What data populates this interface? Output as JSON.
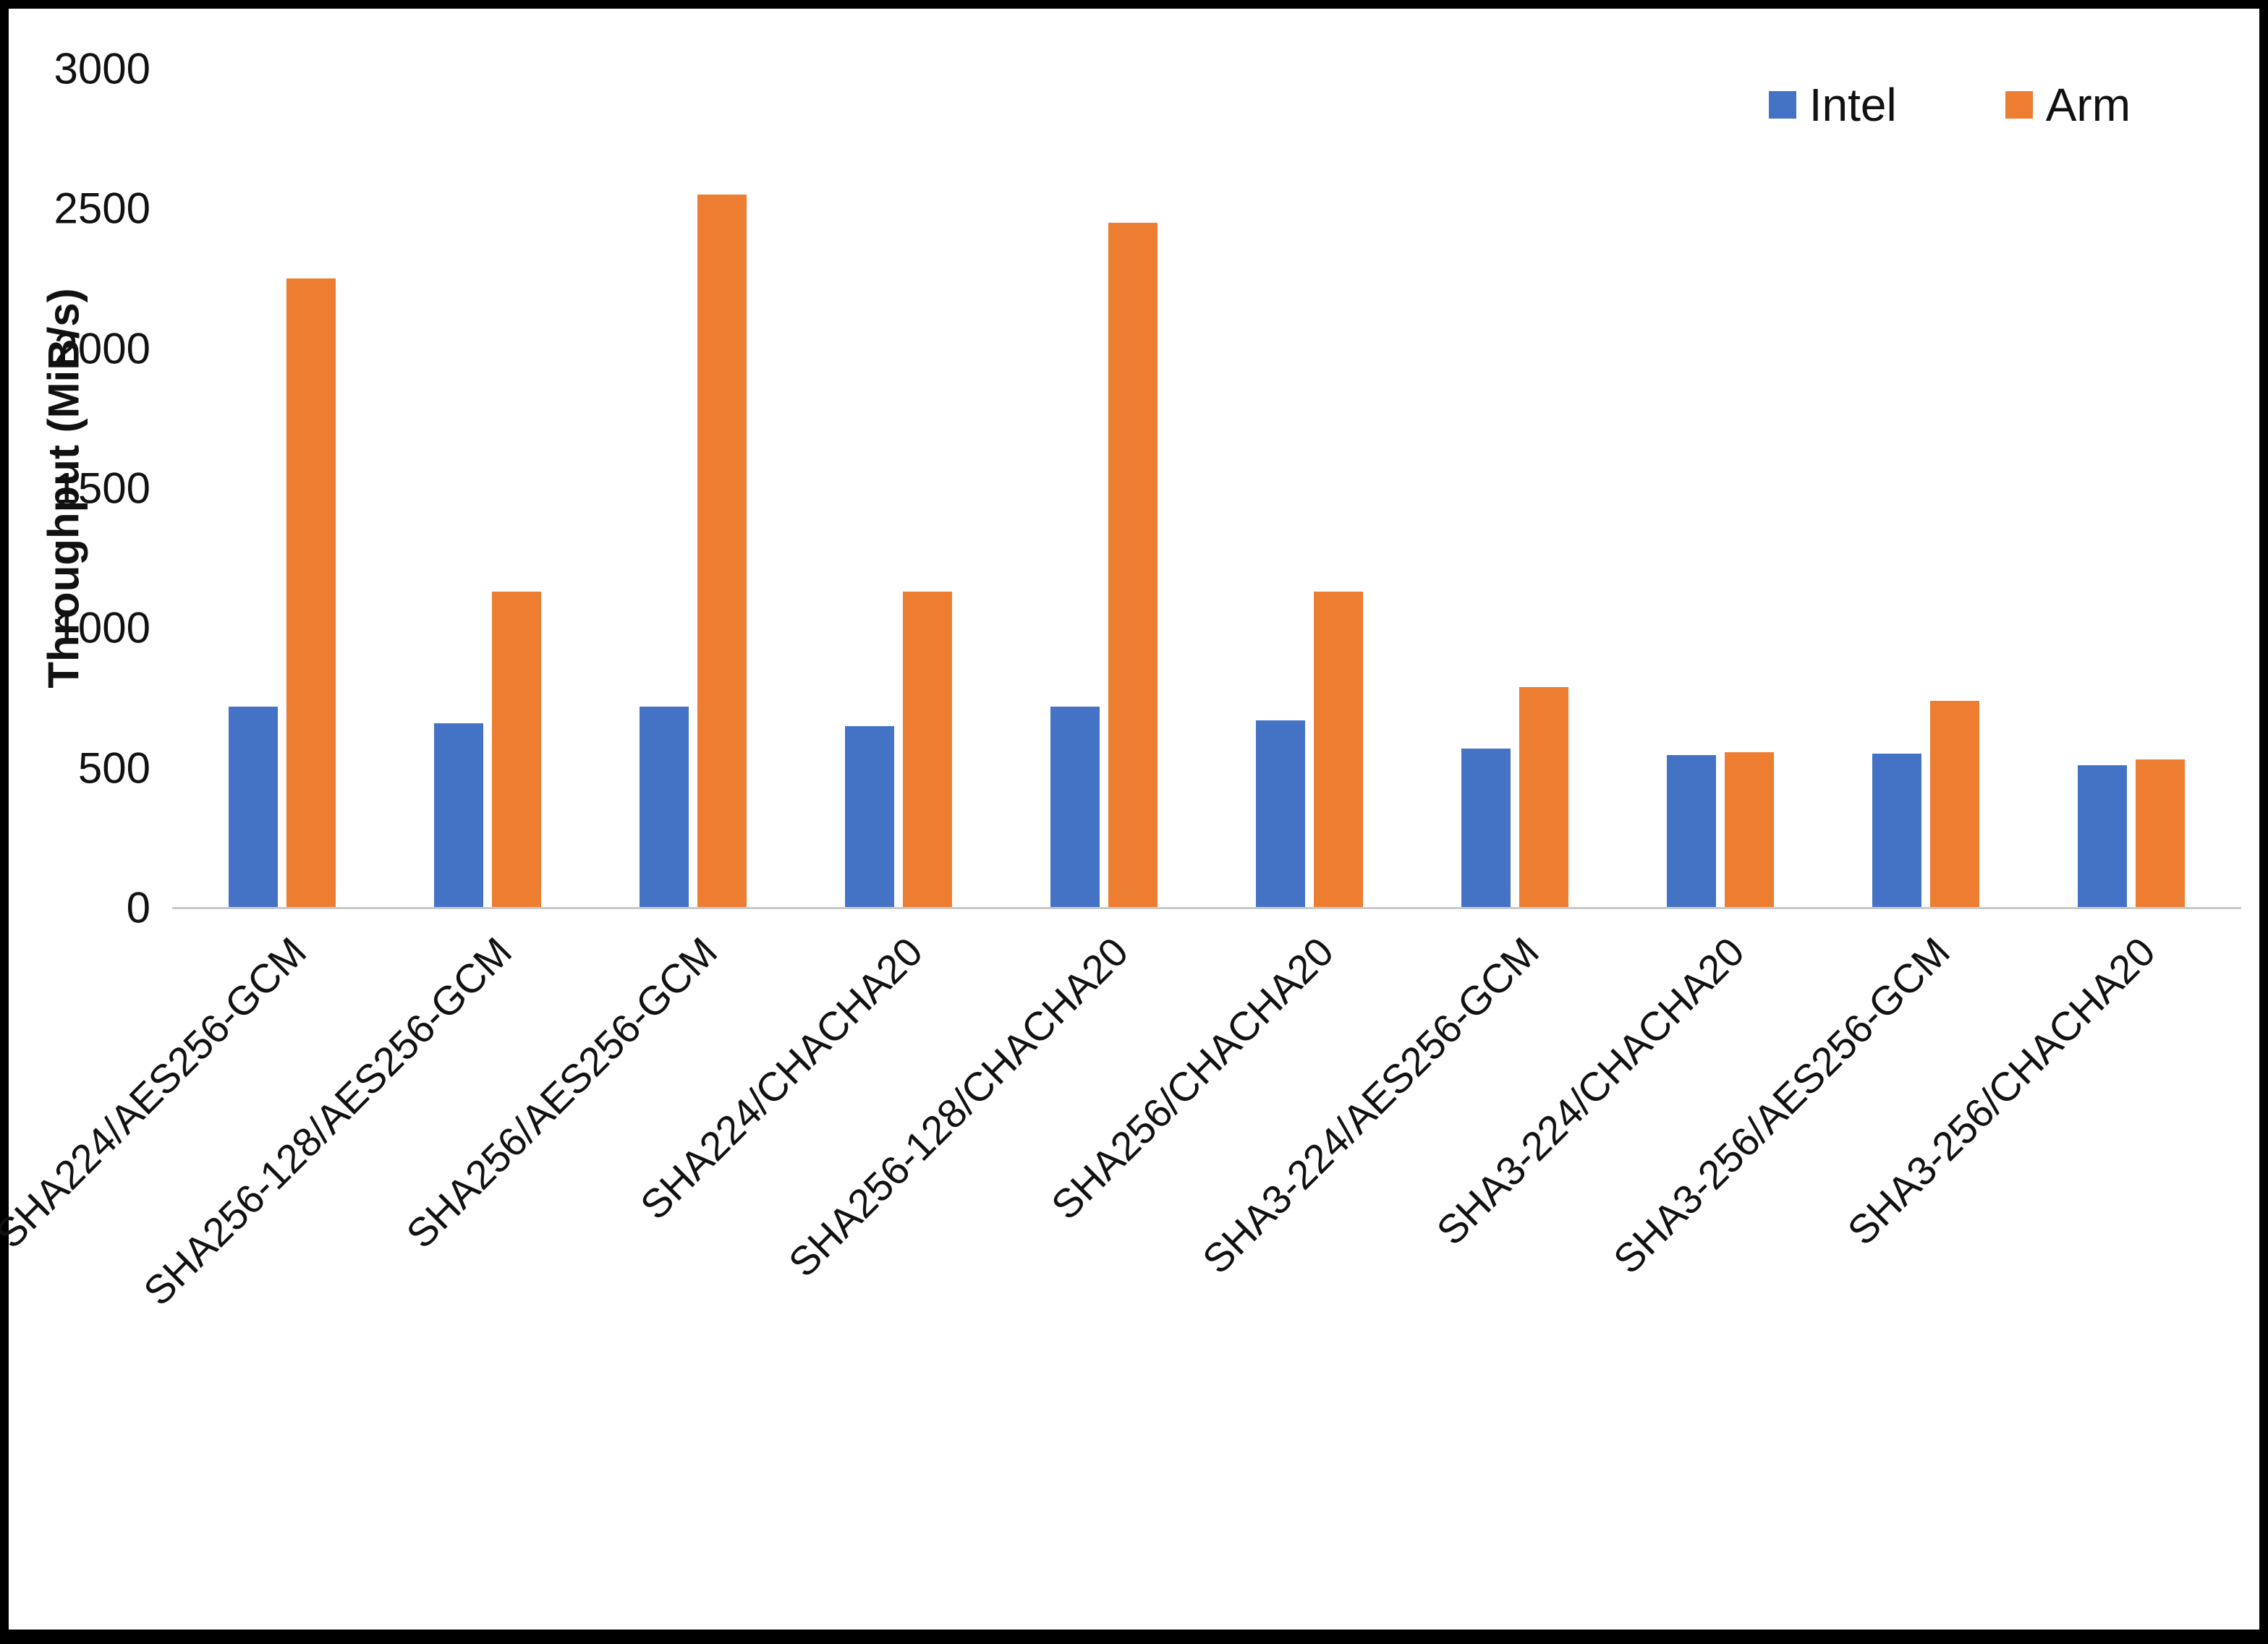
{
  "chart_data": {
    "type": "bar",
    "title": "",
    "xlabel": "",
    "ylabel": "Throughput (MiB/s)",
    "ylim": [
      0,
      3000
    ],
    "yticks": [
      0,
      500,
      1000,
      1500,
      2000,
      2500,
      3000
    ],
    "grid": false,
    "legend_position": "top-right",
    "categories": [
      "SHA224/AES256-GCM",
      "SHA256-128/AES256-GCM",
      "SHA256/AES256-GCM",
      "SHA224/CHACHA20",
      "SHA256-128/CHACHA20",
      "SHA256/CHACHA20",
      "SHA3-224/AES256-GCM",
      "SHA3-224/CHACHA20",
      "SHA3-256/AES256-GCM",
      "SHA3-256/CHACHA20"
    ],
    "series": [
      {
        "name": "Intel",
        "color": "#4472C4",
        "values": [
          720,
          660,
          720,
          650,
          720,
          670,
          570,
          545,
          550,
          510
        ]
      },
      {
        "name": "Arm",
        "color": "#ED7D31",
        "values": [
          2250,
          1130,
          2550,
          1130,
          2450,
          1130,
          790,
          555,
          740,
          530
        ]
      }
    ]
  }
}
